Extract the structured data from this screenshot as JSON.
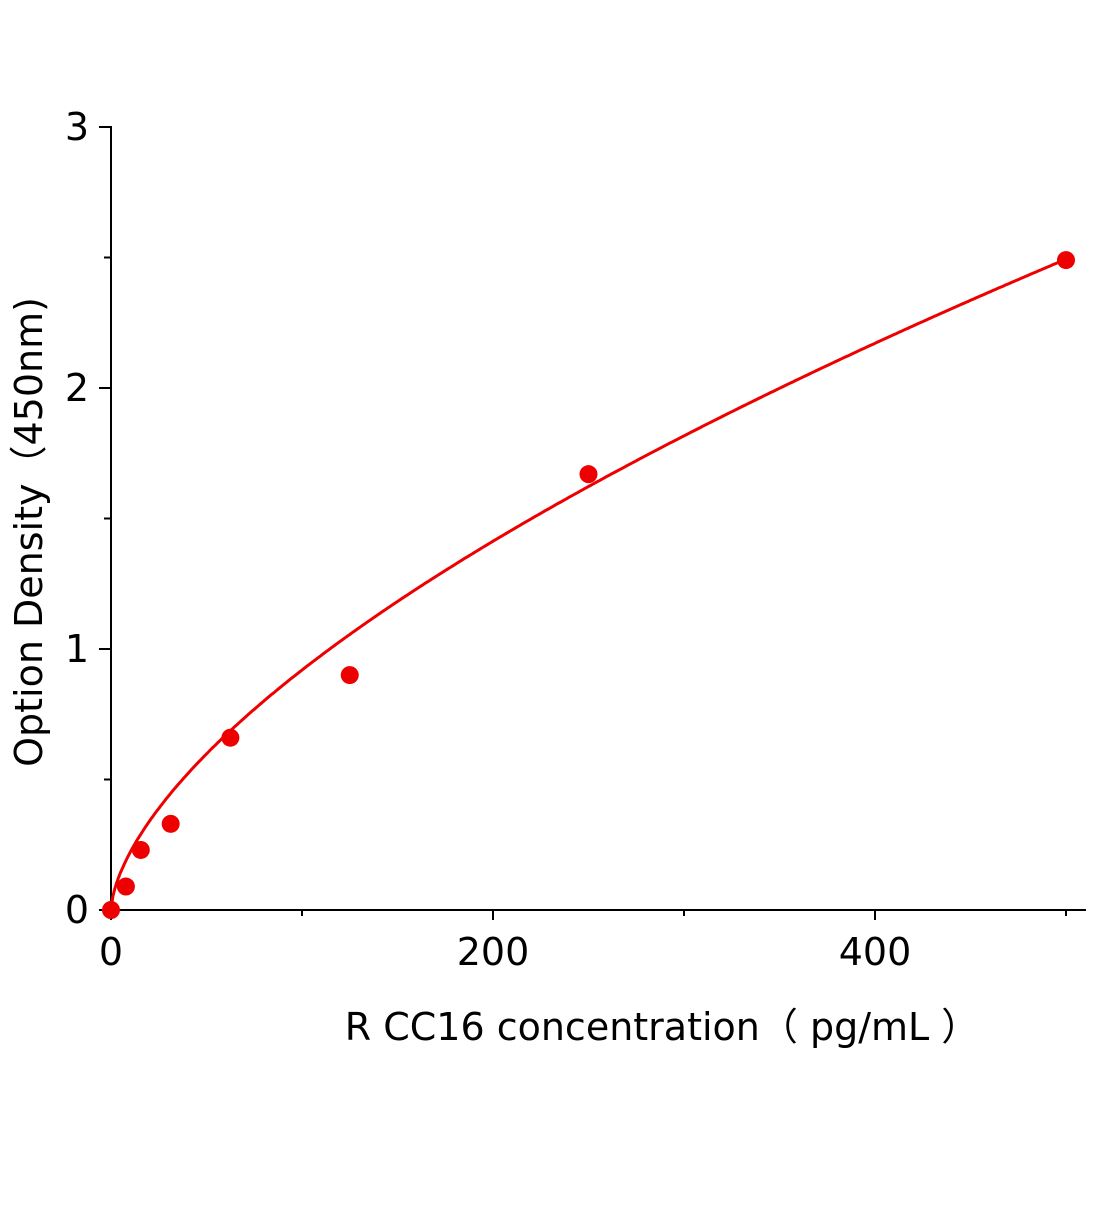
{
  "chart_data": {
    "type": "scatter",
    "title": "",
    "xlabel": "R CC16 concentration（ pg/mL ）",
    "ylabel": "Option Density（450nm)",
    "xlim": [
      0,
      510
    ],
    "ylim": [
      0,
      3
    ],
    "x_ticks": [
      "0",
      "200",
      "400"
    ],
    "x_tick_values": [
      0,
      200,
      400
    ],
    "x_minor_ticks": [
      100,
      300,
      500
    ],
    "y_ticks": [
      "0",
      "1",
      "2",
      "3"
    ],
    "y_tick_values": [
      0,
      1,
      2,
      3
    ],
    "y_minor_ticks": [
      0.5,
      1.5,
      2.5
    ],
    "grid": false,
    "legend": "none",
    "color": "#ee0000",
    "points": {
      "x": [
        0,
        7.8,
        15.6,
        31.25,
        62.5,
        125,
        250,
        500
      ],
      "y": [
        0.0,
        0.09,
        0.23,
        0.33,
        0.66,
        0.9,
        1.67,
        2.49
      ]
    },
    "fit_curve": {
      "model": "power",
      "a": 0.0529,
      "b": 0.62
    }
  }
}
